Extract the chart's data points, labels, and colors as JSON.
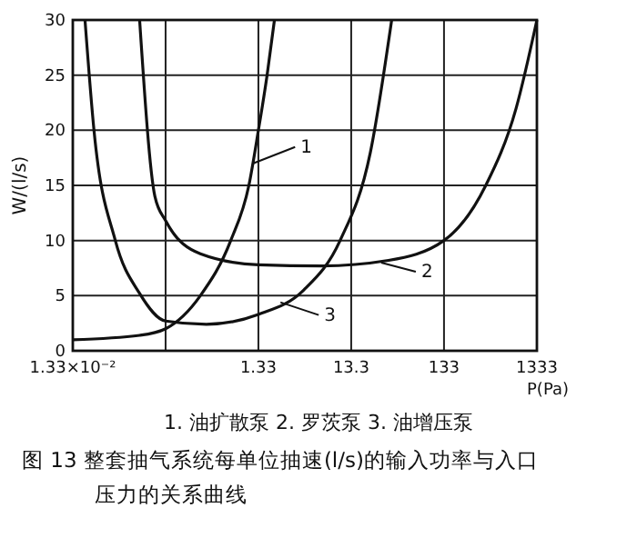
{
  "chart_data": {
    "type": "line",
    "title": "图 13  整套抽气系统每单位抽速(l/s)的输入功率与入口压力的关系曲线",
    "subtitle": "1. 油扩散泵   2. 罗茨泵   3. 油增压泵",
    "xlabel": "P(Pa)",
    "ylabel": "W/(l/s)",
    "log": "x",
    "grid": true,
    "marker": "none",
    "line_style": "solid",
    "xlim": [
      0.0133,
      1333
    ],
    "xticks": [
      {
        "value": 0.0133,
        "label": "1.33×10⁻²"
      },
      {
        "value": 0.133,
        "label": null
      },
      {
        "value": 1.33,
        "label": "1.33"
      },
      {
        "value": 13.3,
        "label": "13.3"
      },
      {
        "value": 133,
        "label": "133"
      },
      {
        "value": 1333,
        "label": "1333"
      }
    ],
    "ylim": [
      0,
      30
    ],
    "yticks": [
      0,
      5,
      10,
      15,
      20,
      25,
      30
    ],
    "series": [
      {
        "color": "#111111",
        "x": [
          0.0133,
          0.0698,
          0.133,
          0.315,
          0.67,
          1.05,
          1.33,
          1.65,
          1.98
        ],
        "values": [
          1,
          1.4,
          2,
          5,
          10,
          15,
          20,
          25,
          30
        ]
      },
      {
        "color": "#111111",
        "x": [
          0.0698,
          0.102,
          0.133,
          0.315,
          1.33,
          6.41,
          33.6,
          133,
          375,
          796,
          1333
        ],
        "values": [
          30,
          14,
          11.8,
          8.8,
          7.8,
          7.7,
          8.2,
          10,
          15,
          22,
          30
        ]
      },
      {
        "color": "#111111",
        "x": [
          0.018,
          0.0225,
          0.0382,
          0.0698,
          0.133,
          0.366,
          1.33,
          4.08,
          10.1,
          21.4,
          36.3
        ],
        "values": [
          30,
          20,
          10,
          5.2,
          2.7,
          2.4,
          3.3,
          5.5,
          10,
          18,
          30
        ]
      }
    ],
    "annotations": [
      {
        "text": "1",
        "x": 1.17,
        "y": 17
      },
      {
        "text": "2",
        "x": 28,
        "y": 8
      },
      {
        "text": "3",
        "x": 2.3,
        "y": 4.4
      }
    ]
  }
}
